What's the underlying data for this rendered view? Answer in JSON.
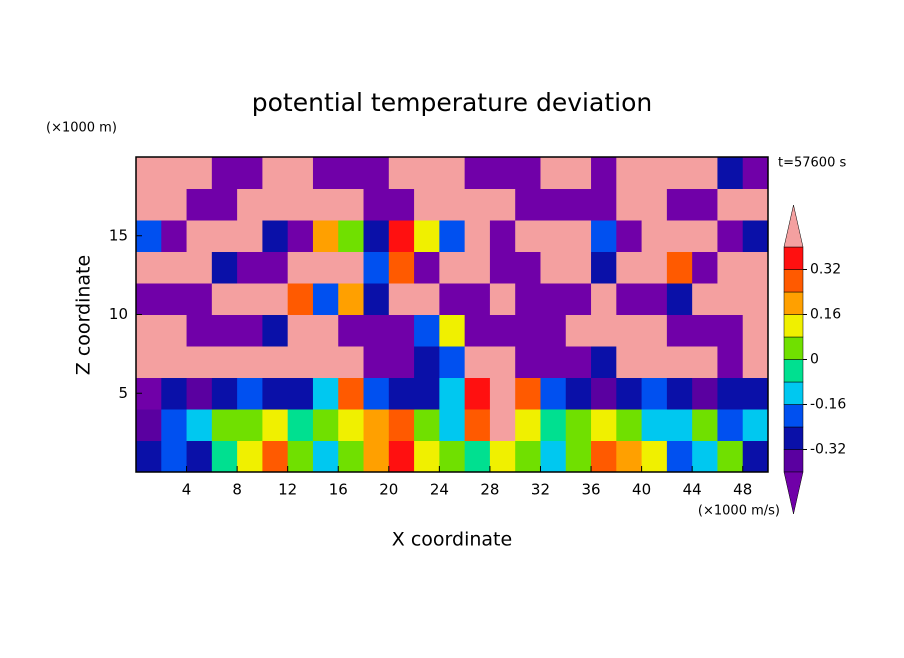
{
  "chart_data": {
    "type": "contour",
    "title": "potential temperature deviation",
    "subtitle": "t=57600 s",
    "x_label": "X coordinate",
    "y_label": "Z coordinate",
    "x_unit": "(×1000 m/s)",
    "y_unit": "(×1000 m)",
    "xlim": [
      0,
      50
    ],
    "ylim": [
      0,
      20
    ],
    "xticks": [
      4,
      8,
      12,
      16,
      20,
      24,
      28,
      32,
      36,
      40,
      44,
      48
    ],
    "yticks": [
      5,
      10,
      15
    ],
    "levels": [
      -0.4,
      -0.32,
      -0.24,
      -0.16,
      -0.08,
      0,
      0.08,
      0.16,
      0.24,
      0.32,
      0.4
    ],
    "colors": [
      "#7000a8",
      "#5a00a0",
      "#0a10a8",
      "#0050f0",
      "#00c8f0",
      "#00e090",
      "#70e000",
      "#f0f000",
      "#ffa000",
      "#ff5a00",
      "#ff1010",
      "#f4a0a0"
    ],
    "colorbar_ticks": [
      -0.32,
      -0.16,
      0,
      0.16,
      0.32
    ],
    "z": [
      [
        -0.3,
        -0.2,
        -0.25,
        -0.05,
        0.1,
        0.3,
        0.05,
        -0.1,
        0.0,
        0.2,
        0.35,
        0.1,
        0.05,
        -0.05,
        0.15,
        0.0,
        -0.1,
        0.05,
        0.3,
        0.2,
        0.1,
        -0.2,
        -0.1,
        0.05,
        -0.3
      ],
      [
        -0.35,
        -0.2,
        -0.1,
        0.0,
        0.05,
        0.1,
        -0.05,
        0.05,
        0.15,
        0.2,
        0.25,
        0.0,
        -0.1,
        0.3,
        0.45,
        0.1,
        -0.05,
        0.0,
        0.1,
        0.05,
        -0.15,
        -0.1,
        0.0,
        -0.2,
        -0.1
      ],
      [
        -0.45,
        -0.3,
        -0.35,
        -0.25,
        -0.2,
        -0.3,
        -0.25,
        -0.15,
        0.3,
        -0.2,
        -0.3,
        -0.25,
        -0.1,
        0.35,
        0.5,
        0.3,
        -0.2,
        -0.3,
        -0.35,
        -0.25,
        -0.2,
        -0.3,
        -0.35,
        -0.25,
        -0.3
      ],
      [
        0.5,
        0.5,
        0.45,
        0.5,
        0.5,
        0.5,
        0.5,
        0.45,
        0.5,
        -0.45,
        -0.45,
        -0.3,
        -0.2,
        0.5,
        0.5,
        -0.5,
        -0.45,
        -0.45,
        -0.3,
        0.5,
        0.5,
        0.5,
        0.5,
        -0.5,
        0.5
      ],
      [
        0.5,
        0.45,
        -0.45,
        -0.5,
        -0.5,
        -0.3,
        0.5,
        0.5,
        -0.45,
        -0.5,
        -0.5,
        -0.2,
        0.1,
        -0.45,
        -0.5,
        -0.5,
        -0.45,
        0.5,
        0.5,
        0.5,
        0.45,
        -0.45,
        -0.5,
        -0.5,
        0.5
      ],
      [
        -0.5,
        -0.5,
        -0.45,
        0.5,
        0.5,
        0.45,
        0.3,
        -0.2,
        0.2,
        -0.3,
        0.4,
        0.5,
        -0.45,
        -0.5,
        0.5,
        -0.45,
        -0.5,
        -0.5,
        0.5,
        -0.45,
        -0.5,
        -0.3,
        0.5,
        0.5,
        0.45
      ],
      [
        0.5,
        0.5,
        0.5,
        -0.3,
        -0.45,
        -0.5,
        0.5,
        0.5,
        0.45,
        -0.2,
        0.3,
        -0.45,
        0.5,
        0.45,
        -0.45,
        -0.5,
        0.5,
        0.5,
        -0.3,
        0.5,
        0.45,
        0.3,
        -0.45,
        0.5,
        0.5
      ],
      [
        -0.2,
        -0.45,
        0.5,
        0.5,
        0.5,
        -0.3,
        -0.45,
        0.2,
        0.0,
        -0.3,
        0.35,
        0.1,
        -0.2,
        0.4,
        -0.45,
        0.5,
        0.5,
        0.45,
        -0.2,
        -0.45,
        0.5,
        0.5,
        0.5,
        -0.45,
        -0.3
      ],
      [
        0.5,
        0.5,
        -0.45,
        -0.5,
        0.45,
        0.5,
        0.5,
        0.5,
        0.5,
        -0.45,
        -0.5,
        0.5,
        0.5,
        0.5,
        0.45,
        -0.45,
        -0.5,
        -0.5,
        -0.45,
        0.5,
        0.5,
        -0.45,
        -0.5,
        0.5,
        0.45
      ],
      [
        0.5,
        0.45,
        0.5,
        -0.5,
        -0.5,
        0.5,
        0.5,
        -0.45,
        -0.5,
        -0.5,
        0.5,
        0.5,
        0.45,
        -0.5,
        -0.5,
        -0.45,
        0.5,
        0.5,
        -0.45,
        0.5,
        0.5,
        0.45,
        0.5,
        -0.3,
        -0.45
      ]
    ]
  }
}
